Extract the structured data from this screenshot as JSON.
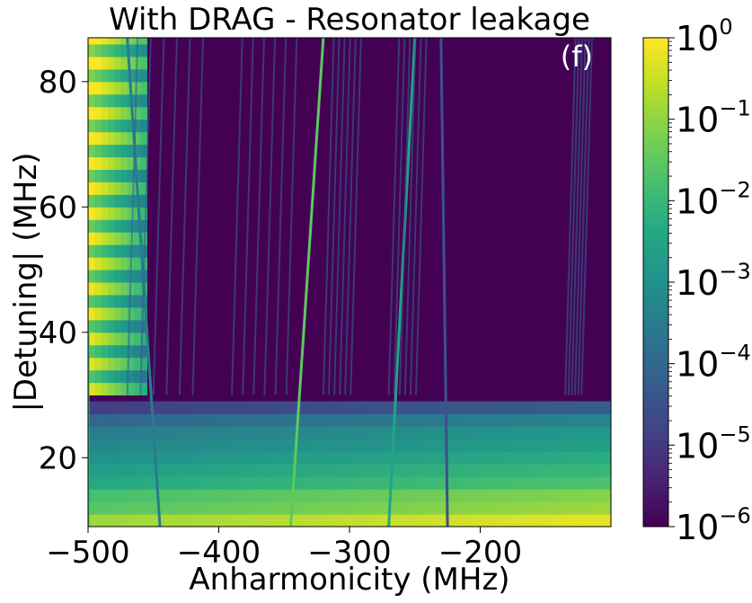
{
  "chart_data": {
    "type": "heatmap",
    "title": "With DRAG -  Resonator leakage",
    "panel_label": "(f)",
    "xlabel": "Anharmonicity (MHz)",
    "ylabel": "|Detuning| (MHz)",
    "xlim": [
      -500,
      -400,
      -300,
      -200,
      -100
    ],
    "x_range": [
      -500,
      -100
    ],
    "y_range": [
      9,
      87
    ],
    "x_ticks": [
      -500,
      -400,
      -300,
      -200
    ],
    "x_tick_labels": [
      "−500",
      "−400",
      "−300",
      "−200"
    ],
    "y_ticks": [
      20,
      40,
      60,
      80
    ],
    "y_tick_labels": [
      "20",
      "40",
      "60",
      "80"
    ],
    "colorscale": "viridis",
    "color_scale_type": "log",
    "colorbar": {
      "min": 1e-06,
      "max": 1,
      "ticks": [
        {
          "base": "10",
          "exp": "0"
        },
        {
          "base": "10",
          "exp": "−1"
        },
        {
          "base": "10",
          "exp": "−2"
        },
        {
          "base": "10",
          "exp": "−3"
        },
        {
          "base": "10",
          "exp": "−4"
        },
        {
          "base": "10",
          "exp": "−5"
        },
        {
          "base": "10",
          "exp": "−6"
        }
      ]
    },
    "features": {
      "low_detuning_bands": [
        {
          "y": 10,
          "log10": -0.5
        },
        {
          "y": 12,
          "log10": -1.2
        },
        {
          "y": 14,
          "log10": -1.4
        },
        {
          "y": 16,
          "log10": -2.0
        },
        {
          "y": 18,
          "log10": -2.3
        },
        {
          "y": 20,
          "log10": -2.6
        },
        {
          "y": 22,
          "log10": -2.9
        },
        {
          "y": 24,
          "log10": -3.1
        },
        {
          "y": 26,
          "log10": -3.6
        },
        {
          "y": 28,
          "log10": -4.5
        }
      ],
      "resonance_lines": [
        {
          "x_low": -500,
          "y_low": 9,
          "x_high": -500,
          "y_high": 40,
          "log10": -2
        },
        {
          "x_low": -445,
          "y_low": 9,
          "x_high": -470,
          "y_high": 87,
          "log10": -3.5
        },
        {
          "x_low": -345,
          "y_low": 9,
          "x_high": -320,
          "y_high": 87,
          "log10": -1.5
        },
        {
          "x_low": -270,
          "y_low": 9,
          "x_high": -250,
          "y_high": 87,
          "log10": -2.5
        },
        {
          "x_low": -225,
          "y_low": 9,
          "x_high": -230,
          "y_high": 87,
          "log10": -4.5
        }
      ],
      "high_leakage_region": {
        "x": [
          -500,
          -465
        ],
        "y": [
          40,
          87
        ],
        "log10": -0.3
      }
    }
  }
}
